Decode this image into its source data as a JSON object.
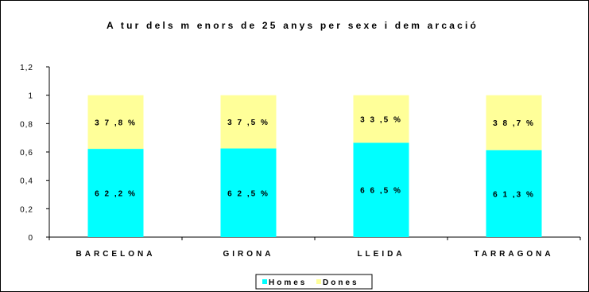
{
  "chart_data": {
    "type": "bar",
    "stacked": true,
    "title": "A tur dels m enors de 25 anys per sexe i dem arcació",
    "categories": [
      "BARCELONA",
      "GIRONA",
      "LLEIDA",
      "TARRAGONA"
    ],
    "series": [
      {
        "name": "Homes",
        "color": "#00ffff",
        "values": [
          0.622,
          0.625,
          0.665,
          0.613
        ],
        "labels": [
          "6 2 ,2 %",
          "6 2 ,5 %",
          "6 6 ,5 %",
          "6 1 ,3 %"
        ]
      },
      {
        "name": "Dones",
        "color": "#ffff99",
        "values": [
          0.378,
          0.375,
          0.335,
          0.387
        ],
        "labels": [
          "3 7 ,8 %",
          "3 7 ,5 %",
          "3 3 ,5 %",
          "3 8 ,7 %"
        ]
      }
    ],
    "yticks": [
      "0",
      "0,2",
      "0,4",
      "0,6",
      "0,8",
      "1",
      "1,2"
    ],
    "ylim": [
      0,
      1.2
    ],
    "grid": false,
    "legend_position": "bottom"
  }
}
